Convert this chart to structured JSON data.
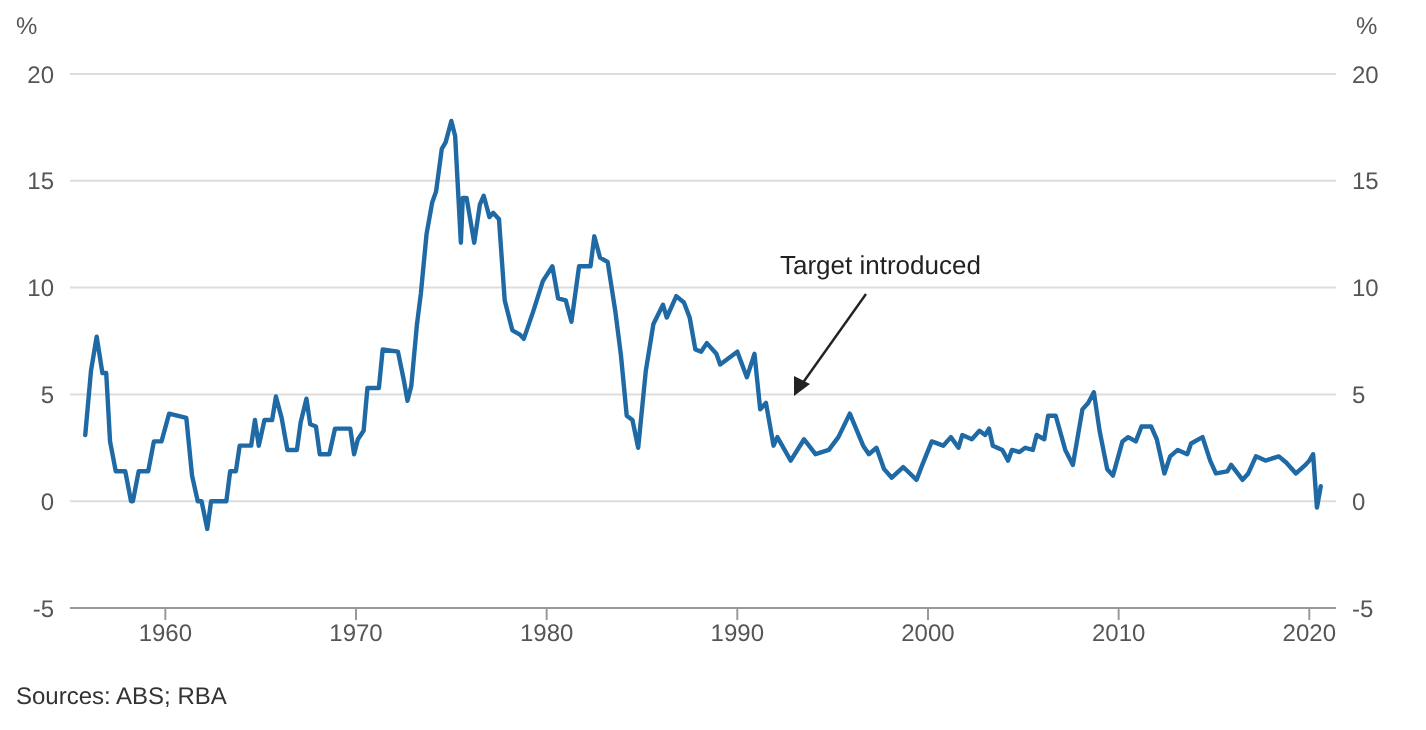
{
  "chart_data": {
    "type": "line",
    "ylabel": "%",
    "y2label": "%",
    "x": [
      1955.8,
      1956.1,
      1956.4,
      1956.7,
      1956.9,
      1957.1,
      1957.4,
      1957.9,
      1958.2,
      1958.3,
      1958.6,
      1959.1,
      1959.4,
      1959.8,
      1960.2,
      1961.1,
      1961.4,
      1961.7,
      1961.9,
      1962.2,
      1962.4,
      1963.2,
      1963.4,
      1963.7,
      1963.9,
      1964.5,
      1964.7,
      1964.9,
      1965.2,
      1965.6,
      1965.8,
      1966.1,
      1966.4,
      1966.9,
      1967.1,
      1967.4,
      1967.6,
      1967.9,
      1968.1,
      1968.6,
      1968.9,
      1969.7,
      1969.9,
      1970.1,
      1970.4,
      1970.6,
      1971.2,
      1971.4,
      1972.2,
      1972.5,
      1972.7,
      1972.9,
      1973.2,
      1973.4,
      1973.7,
      1974.0,
      1974.2,
      1974.5,
      1974.7,
      1975.0,
      1975.2,
      1975.5,
      1975.6,
      1975.8,
      1976.2,
      1976.5,
      1976.7,
      1977.0,
      1977.2,
      1977.5,
      1977.8,
      1978.2,
      1978.6,
      1978.8,
      1979.3,
      1979.8,
      1980.3,
      1980.6,
      1981.0,
      1981.3,
      1981.7,
      1982.3,
      1982.5,
      1982.8,
      1983.2,
      1983.6,
      1983.9,
      1984.2,
      1984.5,
      1984.8,
      1985.2,
      1985.6,
      1986.1,
      1986.3,
      1986.8,
      1987.2,
      1987.5,
      1987.8,
      1988.1,
      1988.4,
      1988.9,
      1989.1,
      1990.0,
      1990.5,
      1990.9,
      1991.2,
      1991.5,
      1991.9,
      1992.1,
      1992.8,
      1993.5,
      1994.1,
      1994.8,
      1995.3,
      1995.9,
      1996.6,
      1996.9,
      1997.3,
      1997.7,
      1998.1,
      1998.7,
      1999.4,
      1999.7,
      2000.2,
      2000.8,
      2001.2,
      2001.6,
      2001.8,
      2002.3,
      2002.7,
      2003.0,
      2003.2,
      2003.4,
      2003.9,
      2004.2,
      2004.4,
      2004.8,
      2005.1,
      2005.5,
      2005.7,
      2006.1,
      2006.3,
      2006.7,
      2007.2,
      2007.6,
      2008.1,
      2008.4,
      2008.7,
      2009.0,
      2009.4,
      2009.7,
      2010.2,
      2010.5,
      2010.9,
      2011.2,
      2011.7,
      2012.0,
      2012.4,
      2012.7,
      2013.1,
      2013.6,
      2013.8,
      2014.4,
      2014.8,
      2015.1,
      2015.7,
      2015.9,
      2016.5,
      2016.8,
      2017.2,
      2017.7,
      2018.4,
      2018.8,
      2019.3,
      2019.8,
      2020.0,
      2020.2,
      2020.4,
      2020.6
    ],
    "series": [
      {
        "color": "#1f6aa5",
        "values": [
          3.1,
          6.1,
          7.7,
          6.0,
          6.0,
          2.8,
          1.4,
          1.4,
          0,
          0,
          1.4,
          1.4,
          2.8,
          2.8,
          4.1,
          3.9,
          1.2,
          0,
          0,
          -1.3,
          0,
          0,
          1.4,
          1.4,
          2.6,
          2.6,
          3.8,
          2.6,
          3.8,
          3.8,
          4.9,
          3.9,
          2.4,
          2.4,
          3.7,
          4.8,
          3.6,
          3.5,
          2.2,
          2.2,
          3.4,
          3.4,
          2.2,
          2.9,
          3.3,
          5.3,
          5.3,
          7.1,
          7.0,
          5.7,
          4.7,
          5.4,
          8.3,
          9.7,
          12.5,
          14.0,
          14.5,
          16.5,
          16.8,
          17.8,
          17.1,
          12.1,
          14.2,
          14.2,
          12.1,
          13.9,
          14.3,
          13.3,
          13.5,
          13.2,
          9.4,
          8.0,
          7.8,
          7.6,
          8.9,
          10.3,
          11.0,
          9.5,
          9.4,
          8.4,
          11.0,
          11.0,
          12.4,
          11.4,
          11.2,
          8.9,
          6.8,
          4.0,
          3.8,
          2.5,
          6.1,
          8.3,
          9.2,
          8.6,
          9.6,
          9.3,
          8.6,
          7.1,
          7.0,
          7.4,
          6.9,
          6.4,
          7.0,
          5.8,
          6.9,
          4.3,
          4.6,
          2.6,
          3.0,
          1.9,
          2.9,
          2.2,
          2.4,
          3.0,
          4.1,
          2.6,
          2.2,
          2.5,
          1.5,
          1.1,
          1.6,
          1.0,
          1.7,
          2.8,
          2.6,
          3.0,
          2.5,
          3.1,
          2.9,
          3.3,
          3.1,
          3.4,
          2.6,
          2.4,
          1.9,
          2.4,
          2.3,
          2.5,
          2.4,
          3.1,
          2.9,
          4.0,
          4.0,
          2.4,
          1.7,
          4.3,
          4.6,
          5.1,
          3.3,
          1.5,
          1.2,
          2.8,
          3.0,
          2.8,
          3.5,
          3.5,
          2.9,
          1.3,
          2.1,
          2.4,
          2.2,
          2.7,
          3.0,
          1.9,
          1.3,
          1.4,
          1.7,
          1.0,
          1.3,
          2.1,
          1.9,
          2.1,
          1.8,
          1.3,
          1.7,
          1.9,
          2.2,
          -0.3,
          0.7
        ]
      }
    ],
    "xlim": [
      1955,
      2021.4
    ],
    "xticks": [
      1960,
      1970,
      1980,
      1990,
      2000,
      2010,
      2020
    ],
    "ylim": [
      -5,
      20
    ],
    "yticks": [
      -5,
      0,
      5,
      10,
      15,
      20
    ],
    "y2lim": [
      -5,
      20
    ],
    "y2ticks": [
      -5,
      0,
      5,
      10,
      15,
      20
    ],
    "grid": "y",
    "legend": false,
    "marker": "none",
    "line_style": "solid",
    "annotations": [
      "Target introduced",
      "Sources: ABS; RBA"
    ]
  }
}
